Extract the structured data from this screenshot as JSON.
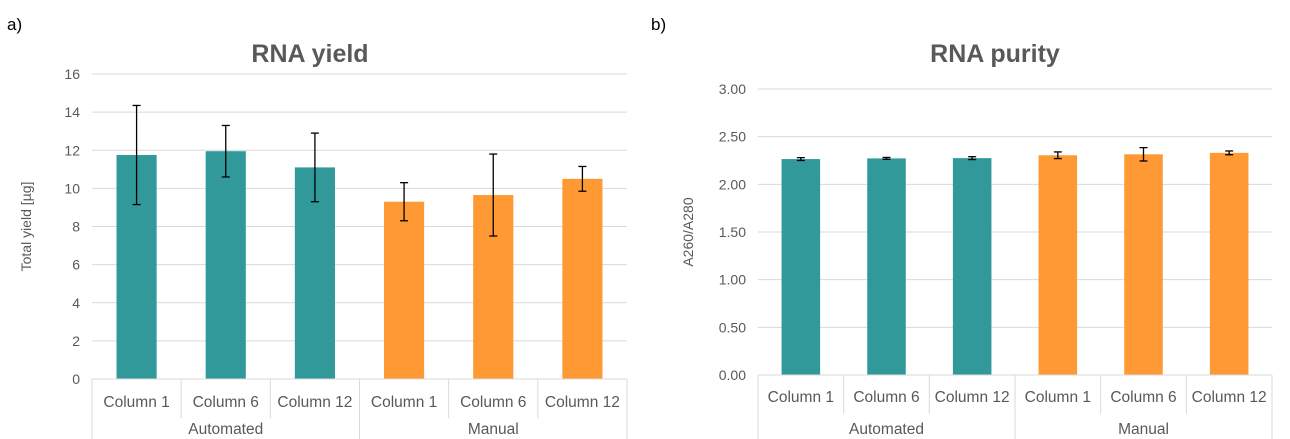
{
  "figure": {
    "panel_labels": [
      "a)",
      "b)"
    ]
  },
  "chart_data": [
    {
      "type": "bar",
      "title": "RNA yield",
      "xlabel": "",
      "ylabel": "Total yield [µg]",
      "ylim": [
        0,
        16
      ],
      "yticks": [
        "0",
        "2",
        "4",
        "6",
        "8",
        "10",
        "12",
        "14",
        "16"
      ],
      "grid": true,
      "categories": [
        "Column 1",
        "Column 6",
        "Column 12",
        "Column 1",
        "Column 6",
        "Column 12"
      ],
      "groups": [
        {
          "label": "Automated",
          "span": [
            0,
            2
          ]
        },
        {
          "label": "Manual",
          "span": [
            3,
            5
          ]
        }
      ],
      "values": [
        11.75,
        11.95,
        11.1,
        9.3,
        9.65,
        10.5
      ],
      "errors": [
        2.6,
        1.35,
        1.8,
        1.0,
        2.15,
        0.65
      ],
      "colors": [
        "#31999A",
        "#31999A",
        "#31999A",
        "#FF9933",
        "#FF9933",
        "#FF9933"
      ]
    },
    {
      "type": "bar",
      "title": "RNA purity",
      "xlabel": "",
      "ylabel": "A260/A280",
      "ylim": [
        0,
        3
      ],
      "yticks": [
        "0.00",
        "0.50",
        "1.00",
        "1.50",
        "2.00",
        "2.50",
        "3.00"
      ],
      "grid": true,
      "categories": [
        "Column 1",
        "Column 6",
        "Column 12",
        "Column 1",
        "Column 6",
        "Column 12"
      ],
      "groups": [
        {
          "label": "Automated",
          "span": [
            0,
            2
          ]
        },
        {
          "label": "Manual",
          "span": [
            3,
            5
          ]
        }
      ],
      "values": [
        2.265,
        2.272,
        2.275,
        2.305,
        2.315,
        2.33
      ],
      "errors": [
        0.015,
        0.01,
        0.015,
        0.035,
        0.07,
        0.02
      ],
      "colors": [
        "#31999A",
        "#31999A",
        "#31999A",
        "#FF9933",
        "#FF9933",
        "#FF9933"
      ]
    }
  ]
}
